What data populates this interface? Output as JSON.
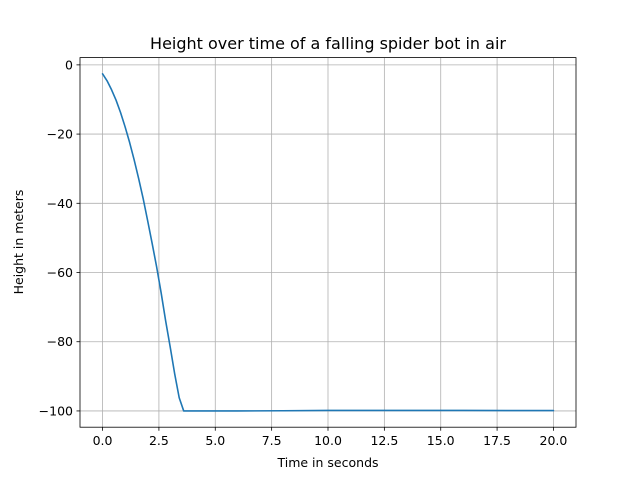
{
  "chart_data": {
    "type": "line",
    "title": "Height over time of a falling spider bot in air",
    "xlabel": "Time in seconds",
    "ylabel": "Height in meters",
    "xlim": [
      -1.0,
      21.0
    ],
    "ylim": [
      -104.7,
      2.1
    ],
    "xticks": [
      0.0,
      2.5,
      5.0,
      7.5,
      10.0,
      12.5,
      15.0,
      17.5,
      20.0
    ],
    "xtick_labels": [
      "0.0",
      "2.5",
      "5.0",
      "7.5",
      "10.0",
      "12.5",
      "15.0",
      "17.5",
      "20.0"
    ],
    "yticks": [
      0,
      -20,
      -40,
      -60,
      -80,
      -100
    ],
    "ytick_labels": [
      "0",
      "−20",
      "−40",
      "−60",
      "−80",
      "−100"
    ],
    "grid": true,
    "series": [
      {
        "color": "#1f77b4",
        "x": [
          0.0,
          0.2,
          0.4,
          0.6,
          0.8,
          1.0,
          1.2,
          1.4,
          1.6,
          1.8,
          2.0,
          2.2,
          2.4,
          2.6,
          2.8,
          3.0,
          3.2,
          3.4,
          3.6,
          3.8,
          4.0,
          6.0,
          8.0,
          10.0,
          12.0,
          14.0,
          16.0,
          18.0,
          20.0
        ],
        "y": [
          -2.6,
          -4.6,
          -7.2,
          -10.2,
          -13.8,
          -17.9,
          -22.4,
          -27.4,
          -32.8,
          -38.6,
          -45.0,
          -51.6,
          -58.4,
          -65.9,
          -74.0,
          -81.5,
          -89.3,
          -96.2,
          -100.0,
          -100.0,
          -100.0,
          -100.0,
          -99.95,
          -99.85,
          -99.85,
          -99.85,
          -99.85,
          -99.9,
          -99.9
        ]
      }
    ]
  }
}
